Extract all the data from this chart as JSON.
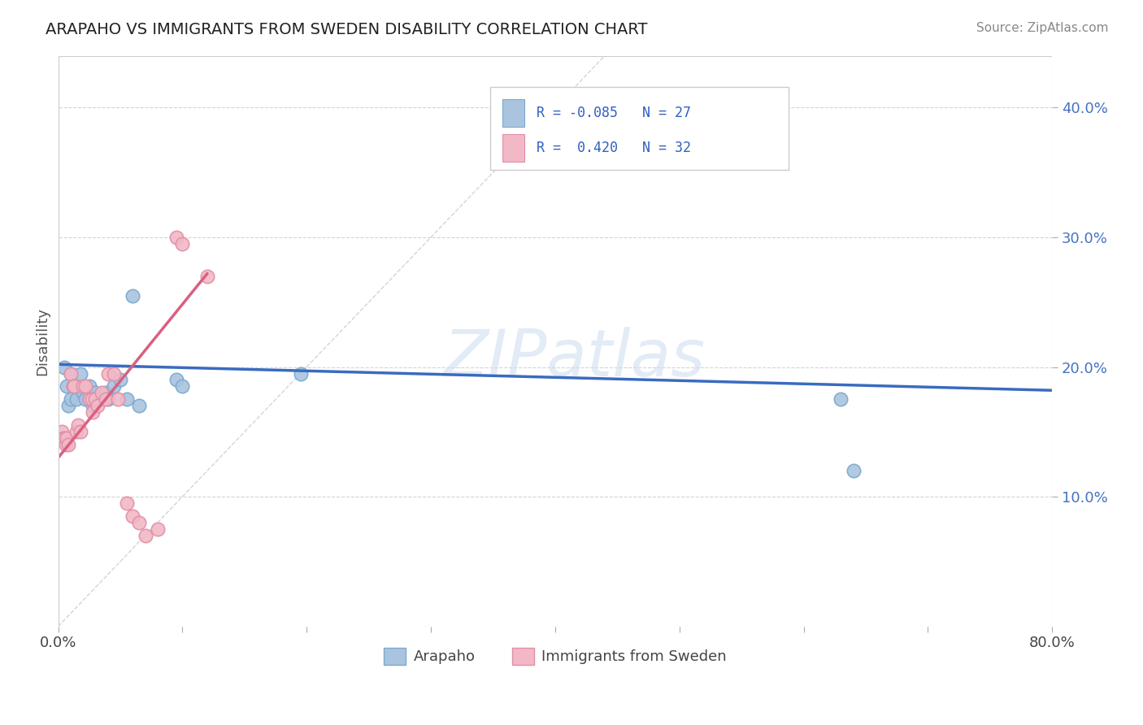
{
  "title": "ARAPAHO VS IMMIGRANTS FROM SWEDEN DISABILITY CORRELATION CHART",
  "source": "Source: ZipAtlas.com",
  "ylabel": "Disability",
  "xlim": [
    0.0,
    0.8
  ],
  "ylim": [
    0.0,
    0.44
  ],
  "xticks": [
    0.0,
    0.1,
    0.2,
    0.3,
    0.4,
    0.5,
    0.6,
    0.7,
    0.8
  ],
  "yticks": [
    0.1,
    0.2,
    0.3,
    0.4
  ],
  "watermark": "ZIPatlas",
  "arapaho_color": "#aac4df",
  "arapaho_edge": "#7aaacf",
  "sweden_color": "#f2b8c6",
  "sweden_edge": "#e090a8",
  "arapaho_R": -0.085,
  "arapaho_N": 27,
  "sweden_R": 0.42,
  "sweden_N": 32,
  "arapaho_scatter_x": [
    0.005,
    0.007,
    0.008,
    0.01,
    0.01,
    0.012,
    0.015,
    0.018,
    0.02,
    0.022,
    0.025,
    0.025,
    0.028,
    0.03,
    0.035,
    0.038,
    0.04,
    0.045,
    0.05,
    0.055,
    0.06,
    0.065,
    0.095,
    0.1,
    0.195,
    0.63,
    0.64
  ],
  "arapaho_scatter_y": [
    0.2,
    0.185,
    0.17,
    0.195,
    0.175,
    0.185,
    0.175,
    0.195,
    0.18,
    0.175,
    0.185,
    0.175,
    0.17,
    0.18,
    0.175,
    0.18,
    0.175,
    0.185,
    0.19,
    0.175,
    0.255,
    0.17,
    0.19,
    0.185,
    0.195,
    0.175,
    0.12
  ],
  "sweden_scatter_x": [
    0.003,
    0.004,
    0.005,
    0.006,
    0.007,
    0.008,
    0.01,
    0.012,
    0.013,
    0.015,
    0.016,
    0.018,
    0.02,
    0.022,
    0.025,
    0.027,
    0.028,
    0.03,
    0.032,
    0.035,
    0.038,
    0.04,
    0.045,
    0.048,
    0.055,
    0.06,
    0.065,
    0.07,
    0.08,
    0.095,
    0.1,
    0.12
  ],
  "sweden_scatter_y": [
    0.15,
    0.145,
    0.145,
    0.14,
    0.145,
    0.14,
    0.195,
    0.185,
    0.185,
    0.15,
    0.155,
    0.15,
    0.185,
    0.185,
    0.175,
    0.175,
    0.165,
    0.175,
    0.17,
    0.18,
    0.175,
    0.195,
    0.195,
    0.175,
    0.095,
    0.085,
    0.08,
    0.07,
    0.075,
    0.3,
    0.295,
    0.27
  ],
  "arapaho_trend_x0": 0.0,
  "arapaho_trend_y0": 0.202,
  "arapaho_trend_x1": 0.8,
  "arapaho_trend_y1": 0.182,
  "sweden_trend_x0": 0.0,
  "sweden_trend_y0": 0.13,
  "sweden_trend_x1": 0.12,
  "sweden_trend_y1": 0.272,
  "ref_line_x0": 0.0,
  "ref_line_y0": 0.0,
  "ref_line_x1": 0.44,
  "ref_line_y1": 0.44,
  "legend_labels": [
    "Arapaho",
    "Immigrants from Sweden"
  ],
  "background_color": "#ffffff",
  "grid_color": "#d0d0d0"
}
